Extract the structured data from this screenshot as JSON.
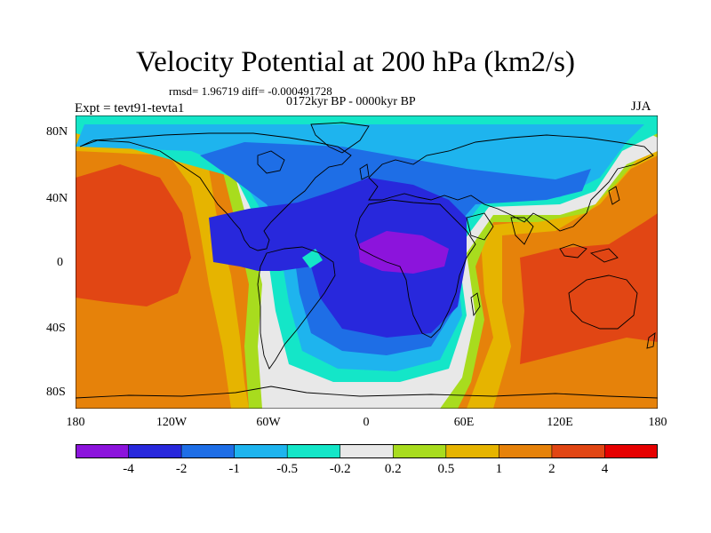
{
  "title": "Velocity Potential at 200 hPa (km2/s)",
  "stats": "rmsd= 1.96719 diff= -0.000491728",
  "period": "0172kyr BP - 0000kyr BP",
  "experiment": "Expt = tevt91-tevta1",
  "season": "JJA",
  "lat_labels": [
    "80N",
    "40N",
    "0",
    "40S",
    "80S"
  ],
  "lon_labels": [
    "180",
    "120W",
    "60W",
    "0",
    "60E",
    "120E",
    "180"
  ],
  "colorbar": {
    "labels": [
      "-4",
      "-2",
      "-1",
      "-0.5",
      "-0.2",
      "0.2",
      "0.5",
      "1",
      "2",
      "4"
    ],
    "colors": [
      "#8c14dc",
      "#2828dc",
      "#1e6ee6",
      "#1eb4ee",
      "#14e6c8",
      "#e8e8e8",
      "#a8dc1e",
      "#e6b400",
      "#e6820a",
      "#e14614",
      "#e60000"
    ]
  },
  "map_colors": {
    "purple": "#8c14dc",
    "dark_blue": "#2828dc",
    "mid_blue": "#1e6ee6",
    "light_blue": "#1eb4ee",
    "cyan": "#14e6c8",
    "white": "#e8e8e8",
    "green": "#a8dc1e",
    "gold": "#e6b400",
    "orange": "#e6820a",
    "red_orange": "#e14614"
  }
}
